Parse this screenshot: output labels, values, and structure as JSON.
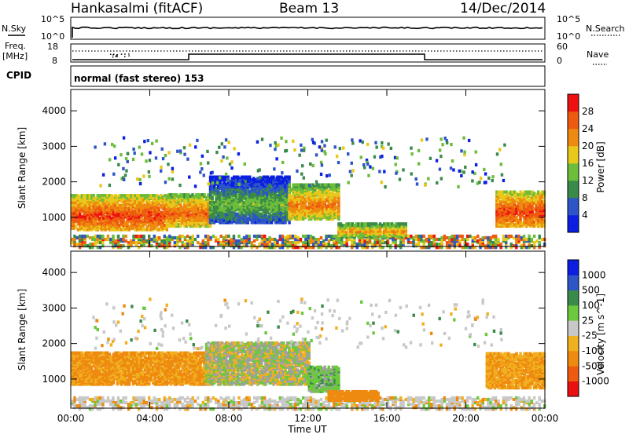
{
  "header": {
    "station": "Hankasalmi (fitACF)",
    "beam": "Beam 13",
    "date": "14/Dec/2014"
  },
  "sky_panel": {
    "left_label": "N.Sky",
    "right_label": "N.Search",
    "top_tick": "10^5",
    "bottom_tick": "10^0"
  },
  "freq_panel": {
    "left_label_1": "Freq.",
    "left_label_2": "[MHz]",
    "left_top_tick": "18",
    "left_bottom_tick": "8",
    "right_label": "Nave",
    "right_top_tick": "60",
    "right_bottom_tick": "0"
  },
  "cpid": {
    "label": "CPID",
    "mode": "normal (fast stereo) 153"
  },
  "axes": {
    "ylabel": "Slant Range [km]",
    "xlabel": "Time UT",
    "xticks": [
      "00:00",
      "04:00",
      "08:00",
      "12:00",
      "16:00",
      "20:00",
      "00:00"
    ],
    "yticks": [
      "1000",
      "2000",
      "3000",
      "4000"
    ]
  },
  "colors": {
    "power_scale": [
      "#0a1fe0",
      "#2e55c8",
      "#3a8a4a",
      "#6cbd3a",
      "#e8c81a",
      "#ee8a10",
      "#ee5a10",
      "#ee1010"
    ],
    "velocity_scale": [
      "#e81010",
      "#ee5a10",
      "#ee8a10",
      "#f0b020",
      "#c8c8c8",
      "#6cc83c",
      "#3a8a4a",
      "#2e55c8",
      "#0a1fe0"
    ],
    "ground_scatter": "#a0a0a0"
  },
  "chart_data": [
    {
      "type": "heatmap",
      "title": "Power",
      "xlabel": "Time UT",
      "ylabel": "Slant Range [km]",
      "colorbar_label": "Power [dB]",
      "colorbar_ticks": [
        "4",
        "8",
        "12",
        "16",
        "20",
        "24",
        "28"
      ],
      "colorbar_range": [
        0,
        32
      ],
      "x_range_hours": [
        0,
        24
      ],
      "y_range_km": [
        180,
        4600
      ],
      "regions": [
        {
          "time": [
            0.0,
            4.8
          ],
          "range_km": [
            700,
            1700
          ],
          "value_db": 28
        },
        {
          "time": [
            4.8,
            7.0
          ],
          "range_km": [
            800,
            1700
          ],
          "value_db": 26
        },
        {
          "time": [
            7.0,
            11.0
          ],
          "range_km": [
            900,
            2200
          ],
          "value_db": 14
        },
        {
          "time": [
            11.0,
            13.5
          ],
          "range_km": [
            1000,
            2000
          ],
          "value_db": 24
        },
        {
          "time": [
            13.5,
            17.0
          ],
          "range_km": [
            500,
            900
          ],
          "value_db": 22
        },
        {
          "time": [
            21.5,
            24.0
          ],
          "range_km": [
            800,
            1800
          ],
          "value_db": 28
        }
      ]
    },
    {
      "type": "heatmap",
      "title": "Velocity",
      "xlabel": "Time UT",
      "ylabel": "Slant Range [km]",
      "colorbar_label": "Velocity [m s^-1]",
      "colorbar_ticks": [
        "-1000",
        "-500",
        "-100",
        "-25",
        "25",
        "100",
        "500",
        "1000"
      ],
      "x_range_hours": [
        0,
        24
      ],
      "y_range_km": [
        180,
        4600
      ],
      "regions": [
        {
          "time": [
            0.0,
            6.8
          ],
          "range_km": [
            900,
            1800
          ],
          "value_ms": -120
        },
        {
          "time": [
            6.8,
            12.0
          ],
          "range_km": [
            900,
            2100
          ],
          "value_ms": 0
        },
        {
          "time": [
            12.0,
            13.5
          ],
          "range_km": [
            700,
            1400
          ],
          "value_ms": 60
        },
        {
          "time": [
            13.0,
            15.5
          ],
          "range_km": [
            450,
            700
          ],
          "value_ms": -400
        },
        {
          "time": [
            21.0,
            24.0
          ],
          "range_km": [
            800,
            1800
          ],
          "value_ms": -100
        }
      ]
    }
  ]
}
